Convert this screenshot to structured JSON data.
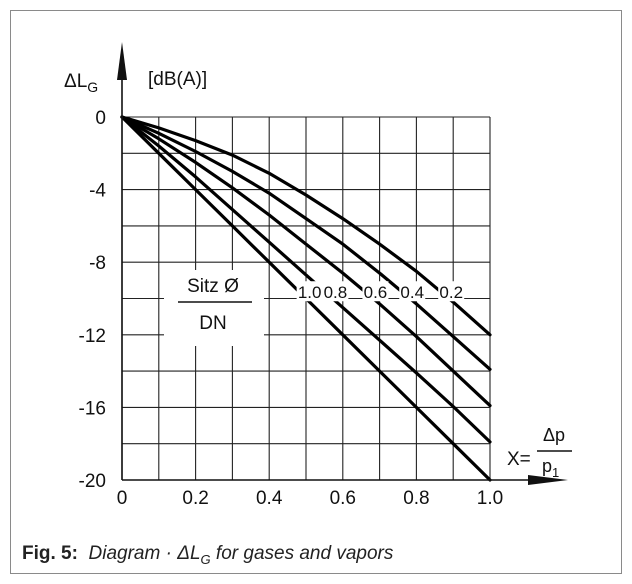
{
  "chart_data": {
    "type": "line",
    "ylabel_main": "ΔL",
    "ylabel_sub": "G",
    "ylabel_unit": "[dB(A)]",
    "xlabel_prefix": "X=",
    "xlabel_numerator": "Δp",
    "xlabel_denominator": "p",
    "xlabel_denominator_sub": "1",
    "xlim": [
      0,
      1.0
    ],
    "ylim": [
      -20,
      0
    ],
    "grid": true,
    "x_ticks": [
      "0",
      "0.2",
      "0.4",
      "0.6",
      "0.8",
      "1.0"
    ],
    "x_tick_values": [
      0,
      0.2,
      0.4,
      0.6,
      0.8,
      1.0
    ],
    "y_ticks": [
      "0",
      "-4",
      "-8",
      "-12",
      "-16",
      "-20"
    ],
    "y_tick_values": [
      0,
      -4,
      -8,
      -12,
      -16,
      -20
    ],
    "legend_title_numerator": "Sitz Ø",
    "legend_title_denominator": "DN",
    "series": [
      {
        "name": "1.0",
        "x": [
          0,
          0.1,
          0.2,
          0.3,
          0.4,
          0.5,
          0.6,
          0.7,
          0.8,
          0.9,
          1.0
        ],
        "y": [
          0,
          -2,
          -4,
          -6,
          -8,
          -10,
          -12,
          -14,
          -16,
          -18,
          -20
        ]
      },
      {
        "name": "0.8",
        "x": [
          0,
          0.1,
          0.2,
          0.3,
          0.4,
          0.5,
          0.6,
          0.7,
          0.8,
          0.9,
          1.0
        ],
        "y": [
          0,
          -1.6,
          -3.3,
          -5.1,
          -6.9,
          -8.7,
          -10.5,
          -12.3,
          -14.1,
          -15.95,
          -17.9
        ]
      },
      {
        "name": "0.6",
        "x": [
          0,
          0.1,
          0.2,
          0.3,
          0.4,
          0.5,
          0.6,
          0.7,
          0.8,
          0.9,
          1.0
        ],
        "y": [
          0,
          -1.2,
          -2.5,
          -3.9,
          -5.4,
          -7.0,
          -8.6,
          -10.3,
          -12.1,
          -14.0,
          -15.9
        ]
      },
      {
        "name": "0.4",
        "x": [
          0,
          0.1,
          0.2,
          0.3,
          0.4,
          0.5,
          0.6,
          0.7,
          0.8,
          0.9,
          1.0
        ],
        "y": [
          0,
          -0.9,
          -1.9,
          -3.0,
          -4.2,
          -5.6,
          -7.0,
          -8.6,
          -10.3,
          -12.1,
          -13.9
        ]
      },
      {
        "name": "0.2",
        "x": [
          0,
          0.1,
          0.2,
          0.3,
          0.4,
          0.5,
          0.6,
          0.7,
          0.8,
          0.9,
          1.0
        ],
        "y": [
          0,
          -0.6,
          -1.3,
          -2.1,
          -3.1,
          -4.3,
          -5.6,
          -7.0,
          -8.5,
          -10.2,
          -12.0
        ]
      }
    ]
  },
  "caption": {
    "fig_label": "Fig. 5:",
    "text": "Diagram · ΔL",
    "text_sub": "G",
    "text_end": " for gases and vapors"
  }
}
